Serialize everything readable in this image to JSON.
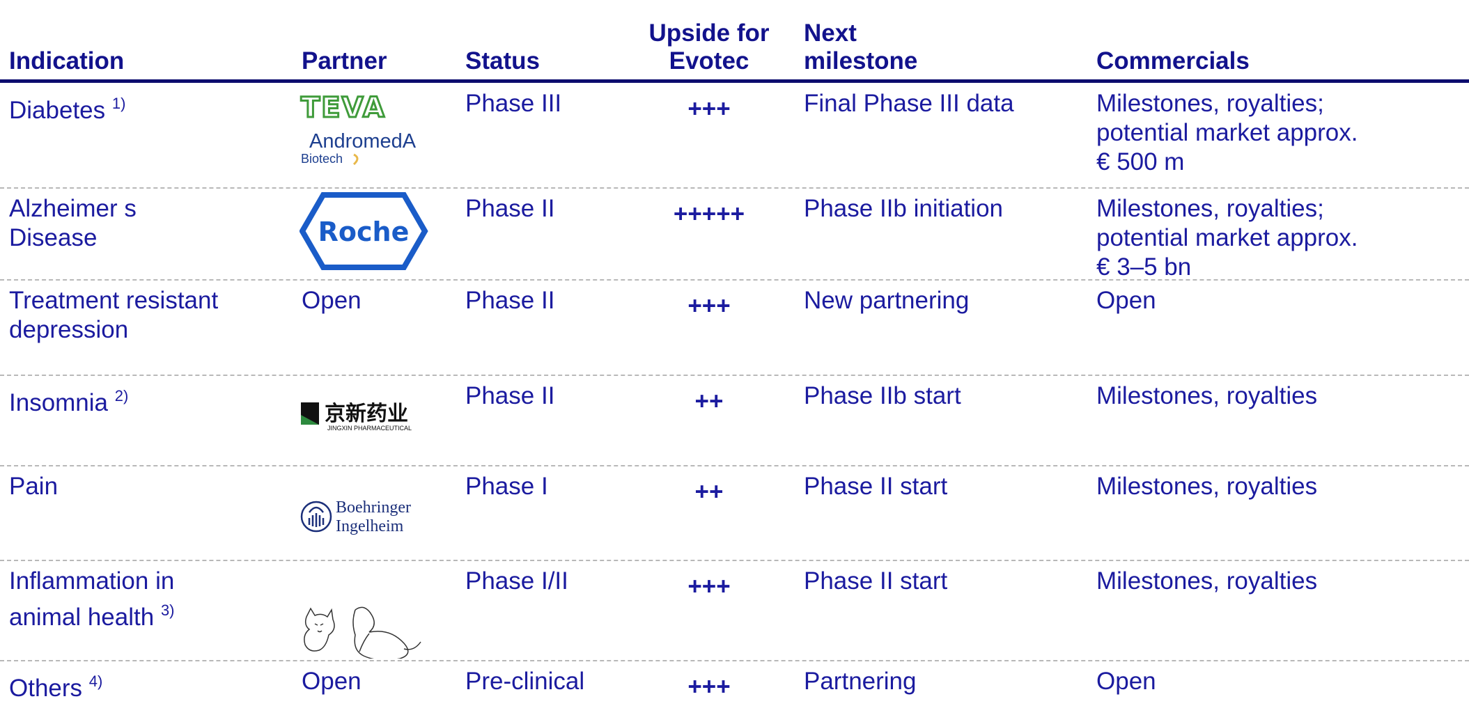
{
  "header": {
    "columns": [
      "Indication",
      "Partner",
      "Status",
      "Upside for Evotec",
      "Next milestone",
      "Commercials"
    ]
  },
  "rows": [
    {
      "indication": [
        "Diabetes"
      ],
      "note": "1)",
      "partner_logo": [
        "TEVA",
        "AndromedA",
        "Biotech"
      ],
      "status": "Phase III",
      "upside": "+++",
      "milestone": "Final Phase III data",
      "commercials": [
        "Milestones, royalties;",
        "potential market approx.",
        "€ 500 m"
      ]
    },
    {
      "indication": [
        "Alzheimer s",
        "Disease"
      ],
      "partner_logo": [
        "Roche"
      ],
      "status": "Phase II",
      "upside": "+++++",
      "milestone": "Phase IIb initiation",
      "commercials": [
        "Milestones, royalties;",
        "potential market approx.",
        "€ 3–5 bn"
      ]
    },
    {
      "indication": [
        "Treatment resistant",
        "depression"
      ],
      "partner": "Open",
      "status": "Phase II",
      "upside": "+++",
      "milestone": "New partnering",
      "commercials": [
        "Open"
      ]
    },
    {
      "indication": [
        "Insomnia"
      ],
      "note": "2)",
      "partner_logo": [
        "京新药业",
        "JINGXIN PHARMACEUTICAL"
      ],
      "status": "Phase II",
      "upside": "++",
      "milestone": "Phase IIb start",
      "commercials": [
        "Milestones, royalties"
      ]
    },
    {
      "indication": [
        "Pain"
      ],
      "partner_logo": [
        "Boehringer",
        "Ingelheim"
      ],
      "status": "Phase I",
      "upside": "++",
      "milestone": "Phase II start",
      "commercials": [
        "Milestones, royalties"
      ]
    },
    {
      "indication": [
        "Inflammation in",
        "animal health"
      ],
      "note": "3)",
      "status": "Phase I/II",
      "upside": "+++",
      "milestone": "Phase II start",
      "commercials": [
        "Milestones, royalties"
      ]
    },
    {
      "indication": [
        "Others"
      ],
      "note": "4)",
      "partner": "Open",
      "status": "Pre-clinical",
      "upside": "+++",
      "milestone": "Partnering",
      "commercials": [
        "Open"
      ]
    }
  ]
}
